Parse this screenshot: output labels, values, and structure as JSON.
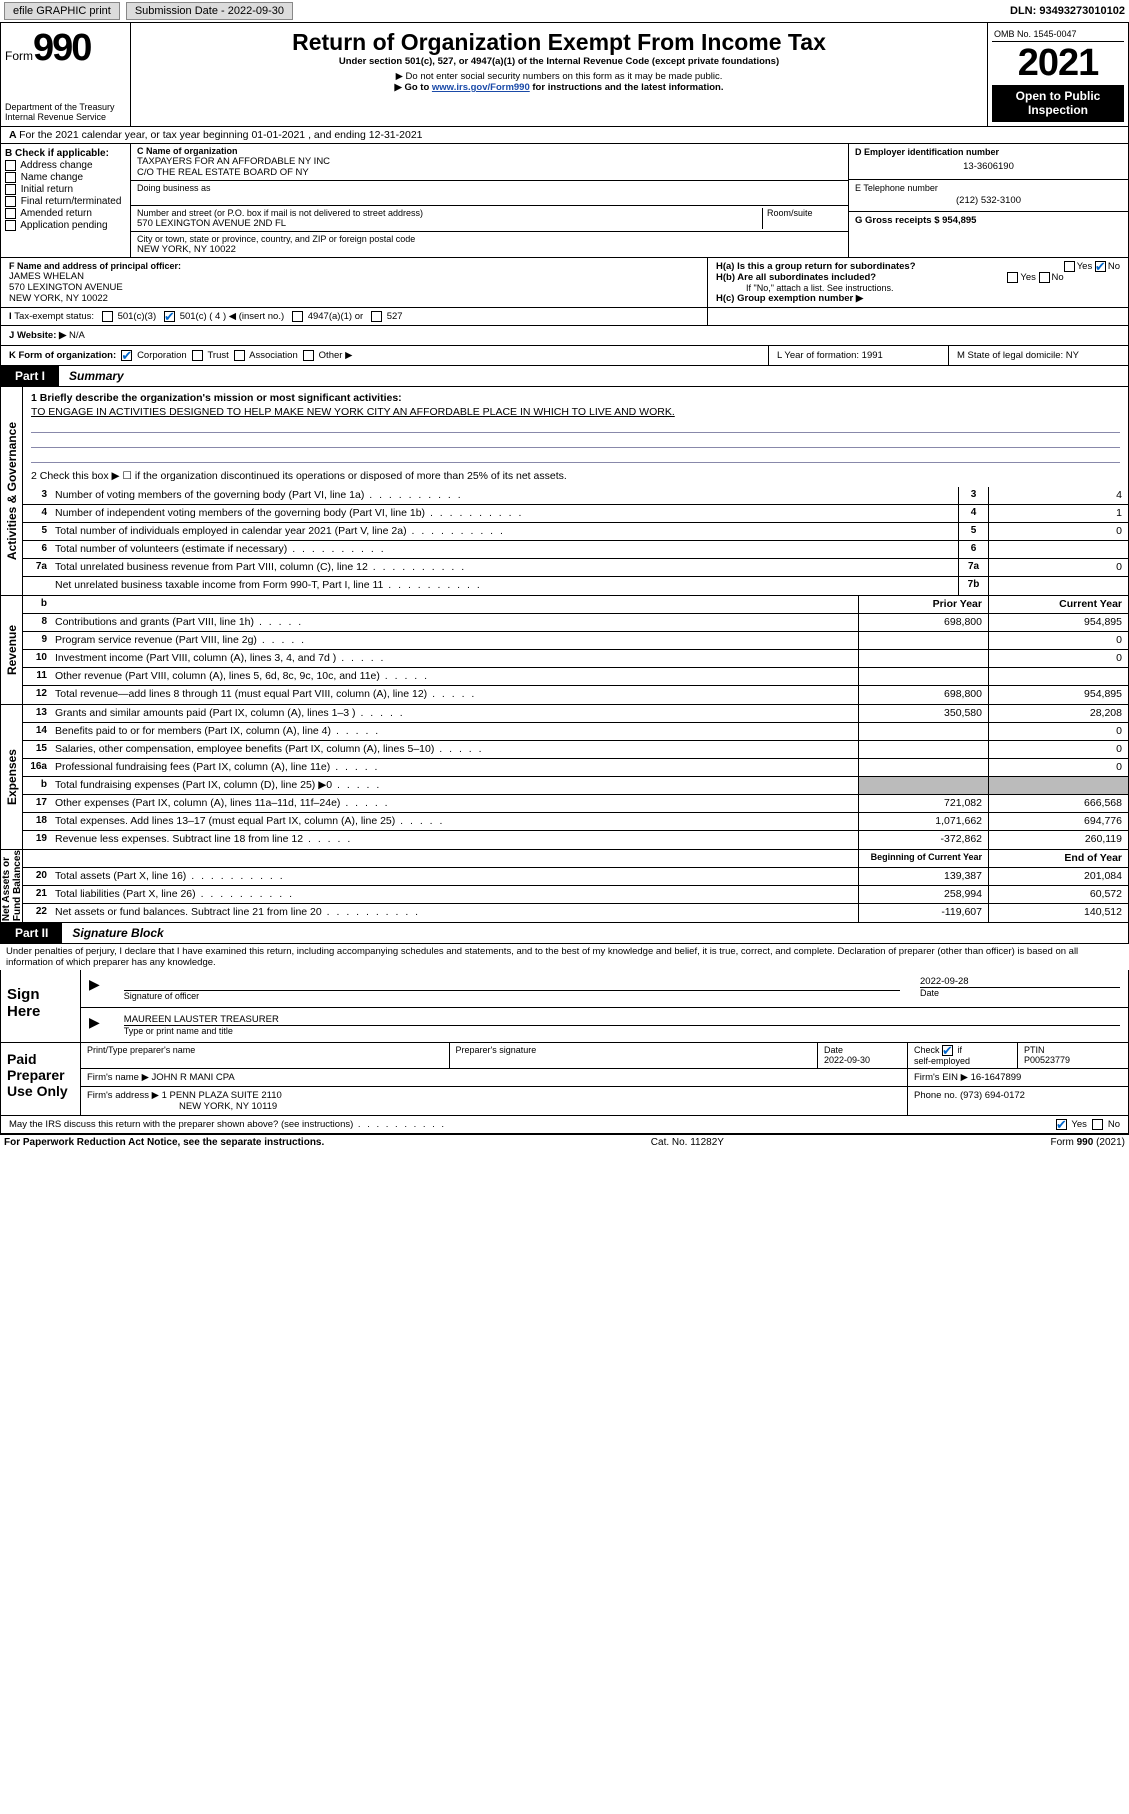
{
  "topbar": {
    "efile": "efile GRAPHIC print",
    "subdate_label": "Submission Date - 2022-09-30",
    "dln_label": "DLN: 93493273010102"
  },
  "header": {
    "form_word": "Form",
    "form_number": "990",
    "dept": "Department of the Treasury\nInternal Revenue Service",
    "title": "Return of Organization Exempt From Income Tax",
    "subtitle": "Under section 501(c), 527, or 4947(a)(1) of the Internal Revenue Code (except private foundations)",
    "note1": "▶ Do not enter social security numbers on this form as it may be made public.",
    "note2_pre": "▶ Go to ",
    "note2_link": "www.irs.gov/Form990",
    "note2_post": " for instructions and the latest information.",
    "omb": "OMB No. 1545-0047",
    "year": "2021",
    "open": "Open to Public\nInspection"
  },
  "periodA": "For the 2021 calendar year, or tax year beginning 01-01-2021   , and ending 12-31-2021",
  "colB": {
    "header": "B Check if applicable:",
    "items": [
      "Address change",
      "Name change",
      "Initial return",
      "Final return/terminated",
      "Amended return",
      "Application pending"
    ]
  },
  "colC": {
    "name_lbl": "C Name of organization",
    "name1": "TAXPAYERS FOR AN AFFORDABLE NY INC",
    "name2": "C/O THE REAL ESTATE BOARD OF NY",
    "dba_lbl": "Doing business as",
    "addr_lbl": "Number and street (or P.O. box if mail is not delivered to street address)",
    "room_lbl": "Room/suite",
    "addr": "570 LEXINGTON AVENUE 2ND FL",
    "city_lbl": "City or town, state or province, country, and ZIP or foreign postal code",
    "city": "NEW YORK, NY  10022"
  },
  "colD": {
    "d_lbl": "D Employer identification number",
    "d_val": "13-3606190",
    "e_lbl": "E Telephone number",
    "e_val": "(212) 532-3100",
    "g_lbl": "G Gross receipts $ 954,895"
  },
  "rowF": {
    "f_lbl": "F Name and address of principal officer:",
    "f_name": "JAMES WHELAN",
    "f_addr1": "570 LEXINGTON AVENUE",
    "f_addr2": "NEW YORK, NY  10022",
    "ha": "H(a)  Is this a group return for subordinates?",
    "hb": "H(b)  Are all subordinates included?",
    "hnote": "If \"No,\" attach a list. See instructions.",
    "hc": "H(c)  Group exemption number ▶"
  },
  "rowI": {
    "lbl": "Tax-exempt status:",
    "c3": "501(c)(3)",
    "c4": "501(c) ( 4 ) ◀ (insert no.)",
    "a1": "4947(a)(1) or",
    "s527": "527"
  },
  "rowJ": {
    "lbl": "Website: ▶",
    "val": "N/A"
  },
  "rowK": {
    "k_lbl": "K Form of organization:",
    "corp": "Corporation",
    "trust": "Trust",
    "assoc": "Association",
    "other": "Other ▶",
    "l_lbl": "L Year of formation: 1991",
    "m_lbl": "M State of legal domicile: NY"
  },
  "part1": {
    "tab": "Part I",
    "title": "Summary",
    "q1a": "1  Briefly describe the organization's mission or most significant activities:",
    "q1b": "TO ENGAGE IN ACTIVITIES DESIGNED TO HELP MAKE NEW YORK CITY AN AFFORDABLE PLACE IN WHICH TO LIVE AND WORK.",
    "q2": "2  Check this box ▶ ☐  if the organization discontinued its operations or disposed of more than 25% of its net assets.",
    "gov_rows": [
      {
        "n": "3",
        "d": "Number of voting members of the governing body (Part VI, line 1a)",
        "b": "3",
        "v": "4"
      },
      {
        "n": "4",
        "d": "Number of independent voting members of the governing body (Part VI, line 1b)",
        "b": "4",
        "v": "1"
      },
      {
        "n": "5",
        "d": "Total number of individuals employed in calendar year 2021 (Part V, line 2a)",
        "b": "5",
        "v": "0"
      },
      {
        "n": "6",
        "d": "Total number of volunteers (estimate if necessary)",
        "b": "6",
        "v": ""
      },
      {
        "n": "7a",
        "d": "Total unrelated business revenue from Part VIII, column (C), line 12",
        "b": "7a",
        "v": "0"
      },
      {
        "n": "",
        "d": "Net unrelated business taxable income from Form 990-T, Part I, line 11",
        "b": "7b",
        "v": ""
      }
    ],
    "hdr_b": "b",
    "hdr_prior": "Prior Year",
    "hdr_curr": "Current Year",
    "rev_rows": [
      {
        "n": "8",
        "d": "Contributions and grants (Part VIII, line 1h)",
        "p": "698,800",
        "c": "954,895"
      },
      {
        "n": "9",
        "d": "Program service revenue (Part VIII, line 2g)",
        "p": "",
        "c": "0"
      },
      {
        "n": "10",
        "d": "Investment income (Part VIII, column (A), lines 3, 4, and 7d )",
        "p": "",
        "c": "0"
      },
      {
        "n": "11",
        "d": "Other revenue (Part VIII, column (A), lines 5, 6d, 8c, 9c, 10c, and 11e)",
        "p": "",
        "c": ""
      },
      {
        "n": "12",
        "d": "Total revenue—add lines 8 through 11 (must equal Part VIII, column (A), line 12)",
        "p": "698,800",
        "c": "954,895"
      }
    ],
    "exp_rows": [
      {
        "n": "13",
        "d": "Grants and similar amounts paid (Part IX, column (A), lines 1–3 )",
        "p": "350,580",
        "c": "28,208"
      },
      {
        "n": "14",
        "d": "Benefits paid to or for members (Part IX, column (A), line 4)",
        "p": "",
        "c": "0"
      },
      {
        "n": "15",
        "d": "Salaries, other compensation, employee benefits (Part IX, column (A), lines 5–10)",
        "p": "",
        "c": "0"
      },
      {
        "n": "16a",
        "d": "Professional fundraising fees (Part IX, column (A), line 11e)",
        "p": "",
        "c": "0"
      },
      {
        "n": "b",
        "d": "Total fundraising expenses (Part IX, column (D), line 25) ▶0",
        "p": "gray",
        "c": "gray"
      },
      {
        "n": "17",
        "d": "Other expenses (Part IX, column (A), lines 11a–11d, 11f–24e)",
        "p": "721,082",
        "c": "666,568"
      },
      {
        "n": "18",
        "d": "Total expenses. Add lines 13–17 (must equal Part IX, column (A), line 25)",
        "p": "1,071,662",
        "c": "694,776"
      },
      {
        "n": "19",
        "d": "Revenue less expenses. Subtract line 18 from line 12",
        "p": "-372,862",
        "c": "260,119"
      }
    ],
    "hdr_beg": "Beginning of Current Year",
    "hdr_end": "End of Year",
    "net_rows": [
      {
        "n": "20",
        "d": "Total assets (Part X, line 16)",
        "p": "139,387",
        "c": "201,084"
      },
      {
        "n": "21",
        "d": "Total liabilities (Part X, line 26)",
        "p": "258,994",
        "c": "60,572"
      },
      {
        "n": "22",
        "d": "Net assets or fund balances. Subtract line 21 from line 20",
        "p": "-119,607",
        "c": "140,512"
      }
    ],
    "vert_gov": "Activities & Governance",
    "vert_rev": "Revenue",
    "vert_exp": "Expenses",
    "vert_net": "Net Assets or\nFund Balances"
  },
  "part2": {
    "tab": "Part II",
    "title": "Signature Block",
    "decl": "Under penalties of perjury, I declare that I have examined this return, including accompanying schedules and statements, and to the best of my knowledge and belief, it is true, correct, and complete. Declaration of preparer (other than officer) is based on all information of which preparer has any knowledge.",
    "sign_here": "Sign Here",
    "sig_of": "Signature of officer",
    "date_lbl": "Date",
    "date_val": "2022-09-28",
    "name_title": "MAUREEN LAUSTER  TREASURER",
    "typed": "Type or print name and title",
    "paid": "Paid Preparer Use Only",
    "ptp": "Print/Type preparer's name",
    "psig": "Preparer's signature",
    "pdate_lbl": "Date",
    "pdate": "2022-09-30",
    "chk_lbl": "Check ☑ if self-employed",
    "ptin_lbl": "PTIN",
    "ptin": "P00523779",
    "firm_name_lbl": "Firm's name    ▶",
    "firm_name": "JOHN R MANI CPA",
    "firm_ein_lbl": "Firm's EIN ▶",
    "firm_ein": "16-1647899",
    "firm_addr_lbl": "Firm's address ▶",
    "firm_addr1": "1 PENN PLAZA SUITE 2110",
    "firm_addr2": "NEW YORK, NY 10119",
    "phone_lbl": "Phone no.",
    "phone": "(973) 694-0172",
    "may": "May the IRS discuss this return with the preparer shown above? (see instructions)",
    "yes": "Yes",
    "no": "No"
  },
  "footer": {
    "left": "For Paperwork Reduction Act Notice, see the separate instructions.",
    "mid": "Cat. No. 11282Y",
    "right": "Form 990 (2021)"
  }
}
